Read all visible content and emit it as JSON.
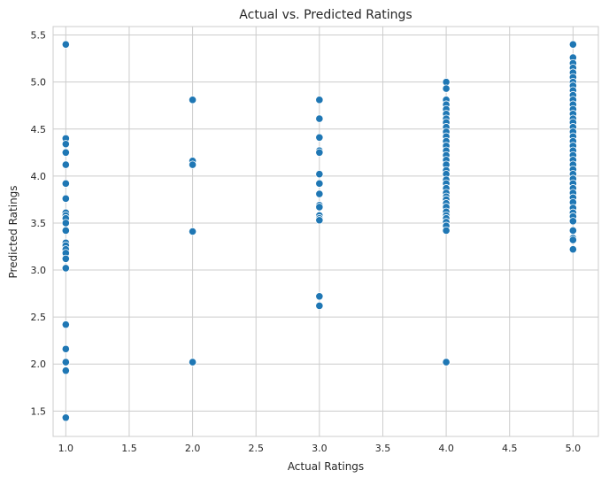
{
  "chart_data": {
    "type": "scatter",
    "title": "Actual vs. Predicted Ratings",
    "xlabel": "Actual Ratings",
    "ylabel": "Predicted Ratings",
    "xlim": [
      0.9,
      5.2
    ],
    "ylim": [
      1.23,
      5.59
    ],
    "xticks": [
      "1.0",
      "1.5",
      "2.0",
      "2.5",
      "3.0",
      "3.5",
      "4.0",
      "4.5",
      "5.0"
    ],
    "yticks": [
      "1.5",
      "2.0",
      "2.5",
      "3.0",
      "3.5",
      "4.0",
      "4.5",
      "5.0",
      "5.5"
    ],
    "grid": true,
    "style": "whitegrid",
    "marker_color": "#1f77b4",
    "points": [
      [
        1,
        5.4
      ],
      [
        1,
        4.4
      ],
      [
        1,
        4.34
      ],
      [
        1,
        4.25
      ],
      [
        1,
        4.12
      ],
      [
        1,
        3.92
      ],
      [
        1,
        3.76
      ],
      [
        1,
        3.61
      ],
      [
        1,
        3.58
      ],
      [
        1,
        3.55
      ],
      [
        1,
        3.5
      ],
      [
        1,
        3.42
      ],
      [
        1,
        3.29
      ],
      [
        1,
        3.26
      ],
      [
        1,
        3.22
      ],
      [
        1,
        3.18
      ],
      [
        1,
        3.12
      ],
      [
        1,
        3.02
      ],
      [
        1,
        2.42
      ],
      [
        1,
        2.16
      ],
      [
        1,
        2.02
      ],
      [
        1,
        1.93
      ],
      [
        1,
        1.43
      ],
      [
        2,
        4.81
      ],
      [
        2,
        4.16
      ],
      [
        2,
        4.12
      ],
      [
        2,
        3.41
      ],
      [
        2,
        2.02
      ],
      [
        3,
        4.81
      ],
      [
        3,
        4.61
      ],
      [
        3,
        4.41
      ],
      [
        3,
        4.27
      ],
      [
        3,
        4.25
      ],
      [
        3,
        4.02
      ],
      [
        3,
        3.92
      ],
      [
        3,
        3.81
      ],
      [
        3,
        3.69
      ],
      [
        3,
        3.67
      ],
      [
        3,
        3.58
      ],
      [
        3,
        3.55
      ],
      [
        3,
        3.53
      ],
      [
        3,
        2.72
      ],
      [
        3,
        2.62
      ],
      [
        4,
        5.0
      ],
      [
        4,
        4.93
      ],
      [
        4,
        4.81
      ],
      [
        4,
        4.76
      ],
      [
        4,
        4.71
      ],
      [
        4,
        4.66
      ],
      [
        4,
        4.61
      ],
      [
        4,
        4.57
      ],
      [
        4,
        4.52
      ],
      [
        4,
        4.47
      ],
      [
        4,
        4.42
      ],
      [
        4,
        4.37
      ],
      [
        4,
        4.32
      ],
      [
        4,
        4.27
      ],
      [
        4,
        4.22
      ],
      [
        4,
        4.17
      ],
      [
        4,
        4.12
      ],
      [
        4,
        4.06
      ],
      [
        4,
        4.02
      ],
      [
        4,
        3.96
      ],
      [
        4,
        3.92
      ],
      [
        4,
        3.87
      ],
      [
        4,
        3.82
      ],
      [
        4,
        3.78
      ],
      [
        4,
        3.75
      ],
      [
        4,
        3.71
      ],
      [
        4,
        3.67
      ],
      [
        4,
        3.62
      ],
      [
        4,
        3.58
      ],
      [
        4,
        3.55
      ],
      [
        4,
        3.51
      ],
      [
        4,
        3.47
      ],
      [
        4,
        3.42
      ],
      [
        4,
        2.02
      ],
      [
        5,
        5.4
      ],
      [
        5,
        5.26
      ],
      [
        5,
        5.2
      ],
      [
        5,
        5.15
      ],
      [
        5,
        5.1
      ],
      [
        5,
        5.05
      ],
      [
        5,
        5.0
      ],
      [
        5,
        4.96
      ],
      [
        5,
        4.91
      ],
      [
        5,
        4.86
      ],
      [
        5,
        4.81
      ],
      [
        5,
        4.76
      ],
      [
        5,
        4.71
      ],
      [
        5,
        4.66
      ],
      [
        5,
        4.61
      ],
      [
        5,
        4.57
      ],
      [
        5,
        4.52
      ],
      [
        5,
        4.47
      ],
      [
        5,
        4.42
      ],
      [
        5,
        4.37
      ],
      [
        5,
        4.32
      ],
      [
        5,
        4.27
      ],
      [
        5,
        4.22
      ],
      [
        5,
        4.17
      ],
      [
        5,
        4.12
      ],
      [
        5,
        4.07
      ],
      [
        5,
        4.02
      ],
      [
        5,
        3.97
      ],
      [
        5,
        3.92
      ],
      [
        5,
        3.87
      ],
      [
        5,
        3.82
      ],
      [
        5,
        3.77
      ],
      [
        5,
        3.72
      ],
      [
        5,
        3.66
      ],
      [
        5,
        3.61
      ],
      [
        5,
        3.57
      ],
      [
        5,
        3.52
      ],
      [
        5,
        3.42
      ],
      [
        5,
        3.34
      ],
      [
        5,
        3.32
      ],
      [
        5,
        3.22
      ]
    ]
  }
}
